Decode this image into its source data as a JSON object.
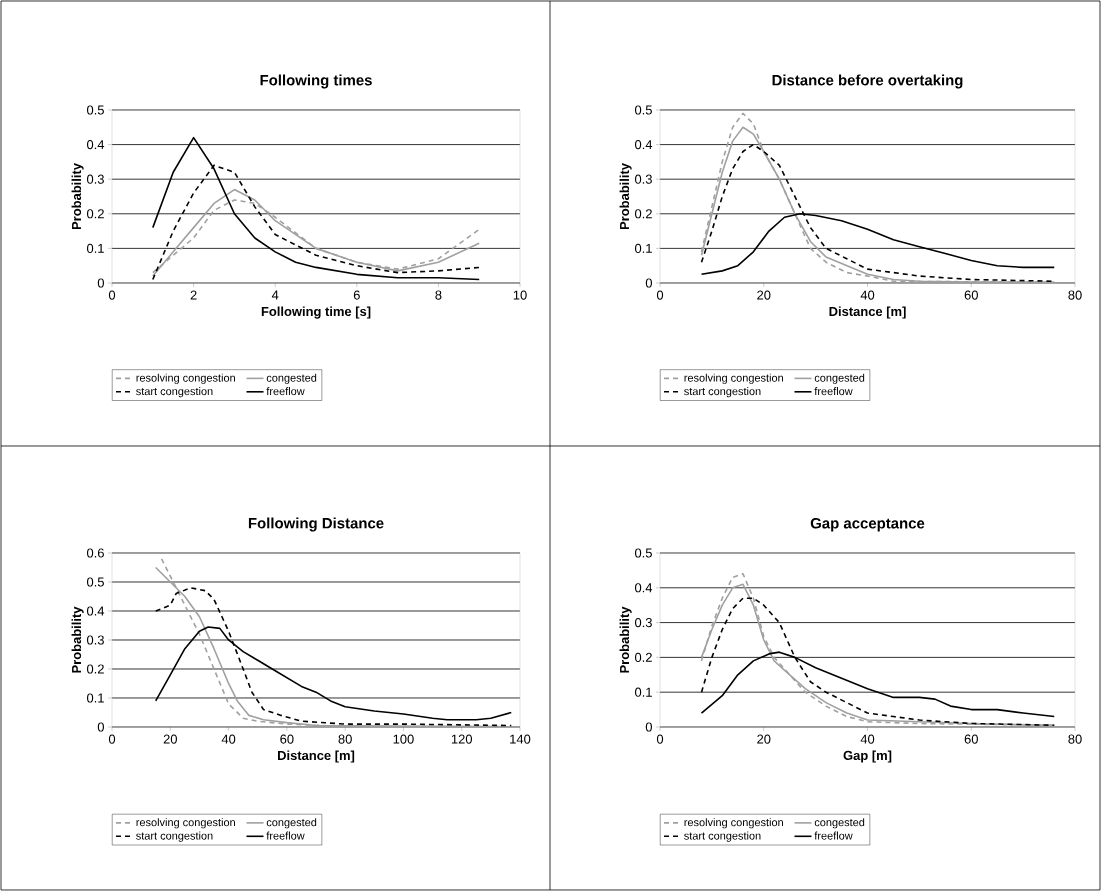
{
  "chart_data": [
    {
      "type": "line",
      "title": "Following times",
      "xlabel": "Following time [s]",
      "ylabel": "Probability",
      "xlim": [
        0,
        10
      ],
      "xticks": [
        0,
        2,
        4,
        6,
        8,
        10
      ],
      "ylim": [
        0,
        0.5
      ],
      "yticks": [
        0,
        0.1,
        0.2,
        0.3,
        0.4,
        0.5
      ],
      "grid": "y",
      "legend": "bottom",
      "marker": "none",
      "series": [
        {
          "name": "resolving congestion",
          "color": "#a0a0a0",
          "line_style": "dashed",
          "x": [
            1,
            1.5,
            2,
            2.5,
            3,
            3.5,
            4,
            5,
            6,
            7,
            8,
            9
          ],
          "values": [
            0.03,
            0.08,
            0.13,
            0.21,
            0.24,
            0.23,
            0.19,
            0.1,
            0.06,
            0.04,
            0.07,
            0.155
          ]
        },
        {
          "name": "congested",
          "color": "#a0a0a0",
          "line_style": "solid",
          "x": [
            1,
            1.5,
            2,
            2.5,
            3,
            3.5,
            4,
            5,
            6,
            7,
            8,
            9
          ],
          "values": [
            0.02,
            0.09,
            0.16,
            0.23,
            0.27,
            0.24,
            0.18,
            0.1,
            0.06,
            0.035,
            0.06,
            0.115
          ]
        },
        {
          "name": "start congestion",
          "color": "#000000",
          "line_style": "dashed",
          "x": [
            1,
            1.5,
            2,
            2.5,
            3,
            3.5,
            4,
            5,
            6,
            7,
            8,
            9
          ],
          "values": [
            0.01,
            0.15,
            0.26,
            0.34,
            0.32,
            0.22,
            0.14,
            0.08,
            0.05,
            0.03,
            0.035,
            0.045
          ]
        },
        {
          "name": "freeflow",
          "color": "#000000",
          "line_style": "solid",
          "x": [
            1,
            1.5,
            2,
            2.5,
            3,
            3.5,
            4,
            4.5,
            5,
            6,
            7,
            8,
            9
          ],
          "values": [
            0.16,
            0.32,
            0.42,
            0.33,
            0.2,
            0.13,
            0.09,
            0.06,
            0.045,
            0.025,
            0.015,
            0.015,
            0.01
          ]
        }
      ]
    },
    {
      "type": "line",
      "title": "Distance before overtaking",
      "xlabel": "Distance [m]",
      "ylabel": "Probability",
      "xlim": [
        0,
        80
      ],
      "xticks": [
        0,
        20,
        40,
        60,
        80
      ],
      "ylim": [
        0,
        0.5
      ],
      "yticks": [
        0,
        0.1,
        0.2,
        0.3,
        0.4,
        0.5
      ],
      "grid": "y",
      "legend": "bottom",
      "marker": "none",
      "series": [
        {
          "name": "resolving congestion",
          "color": "#a0a0a0",
          "line_style": "dashed",
          "x": [
            8,
            10,
            12,
            14,
            16,
            18,
            20,
            23,
            26,
            29,
            32,
            36,
            40,
            45,
            76
          ],
          "values": [
            0.09,
            0.22,
            0.35,
            0.45,
            0.49,
            0.46,
            0.38,
            0.3,
            0.2,
            0.1,
            0.06,
            0.03,
            0.02,
            0.005,
            0.002
          ]
        },
        {
          "name": "congested",
          "color": "#a0a0a0",
          "line_style": "solid",
          "x": [
            8,
            10,
            12,
            14,
            16,
            18,
            20,
            23,
            26,
            29,
            32,
            36,
            40,
            45,
            50,
            60,
            76
          ],
          "values": [
            0.08,
            0.2,
            0.32,
            0.41,
            0.45,
            0.43,
            0.38,
            0.3,
            0.2,
            0.12,
            0.075,
            0.05,
            0.025,
            0.01,
            0.005,
            0.003,
            0.002
          ]
        },
        {
          "name": "start congestion",
          "color": "#000000",
          "line_style": "dashed",
          "x": [
            8,
            10,
            12,
            14,
            16,
            18,
            20,
            23,
            26,
            29,
            32,
            36,
            40,
            45,
            50,
            60,
            76
          ],
          "values": [
            0.06,
            0.15,
            0.25,
            0.33,
            0.38,
            0.4,
            0.38,
            0.34,
            0.25,
            0.16,
            0.1,
            0.07,
            0.04,
            0.03,
            0.02,
            0.01,
            0.005
          ]
        },
        {
          "name": "freeflow",
          "color": "#000000",
          "line_style": "solid",
          "x": [
            8,
            12,
            15,
            18,
            21,
            24,
            27,
            30,
            35,
            40,
            45,
            50,
            55,
            60,
            65,
            70,
            76
          ],
          "values": [
            0.025,
            0.035,
            0.05,
            0.09,
            0.15,
            0.19,
            0.2,
            0.195,
            0.18,
            0.155,
            0.125,
            0.105,
            0.085,
            0.065,
            0.05,
            0.045,
            0.045
          ]
        }
      ]
    },
    {
      "type": "line",
      "title": "Following Distance",
      "xlabel": "Distance [m]",
      "ylabel": "Probability",
      "xlim": [
        0,
        140
      ],
      "xticks": [
        0,
        20,
        40,
        60,
        80,
        100,
        120,
        140
      ],
      "ylim": [
        0,
        0.6
      ],
      "yticks": [
        0,
        0.1,
        0.2,
        0.3,
        0.4,
        0.5,
        0.6
      ],
      "grid": "y",
      "legend": "bottom",
      "marker": "none",
      "series": [
        {
          "name": "resolving congestion",
          "color": "#a0a0a0",
          "line_style": "dashed",
          "x": [
            17,
            20,
            25,
            30,
            35,
            40,
            45,
            50,
            60,
            80,
            137
          ],
          "values": [
            0.58,
            0.52,
            0.42,
            0.32,
            0.2,
            0.08,
            0.03,
            0.02,
            0.01,
            0.002,
            0.001
          ]
        },
        {
          "name": "congested",
          "color": "#a0a0a0",
          "line_style": "solid",
          "x": [
            15,
            20,
            25,
            30,
            35,
            40,
            43,
            47,
            52,
            60,
            70,
            137
          ],
          "values": [
            0.55,
            0.5,
            0.45,
            0.38,
            0.27,
            0.15,
            0.09,
            0.04,
            0.025,
            0.015,
            0.005,
            0.001
          ]
        },
        {
          "name": "start congestion",
          "color": "#000000",
          "line_style": "dashed",
          "x": [
            15,
            20,
            22,
            27,
            32,
            35,
            40,
            45,
            48,
            52,
            58,
            65,
            80,
            100,
            137
          ],
          "values": [
            0.4,
            0.42,
            0.46,
            0.48,
            0.47,
            0.44,
            0.33,
            0.2,
            0.12,
            0.06,
            0.04,
            0.02,
            0.01,
            0.01,
            0.005
          ]
        },
        {
          "name": "freeflow",
          "color": "#000000",
          "line_style": "solid",
          "x": [
            15,
            20,
            25,
            30,
            33,
            37,
            40,
            45,
            50,
            55,
            60,
            65,
            70,
            75,
            80,
            90,
            100,
            110,
            115,
            125,
            130,
            137
          ],
          "values": [
            0.09,
            0.18,
            0.27,
            0.33,
            0.345,
            0.34,
            0.3,
            0.26,
            0.23,
            0.2,
            0.17,
            0.14,
            0.12,
            0.09,
            0.07,
            0.055,
            0.045,
            0.03,
            0.025,
            0.025,
            0.03,
            0.05
          ]
        }
      ]
    },
    {
      "type": "line",
      "title": "Gap acceptance",
      "xlabel": "Gap [m]",
      "ylabel": "Probability",
      "xlim": [
        0,
        80
      ],
      "xticks": [
        0,
        20,
        40,
        60,
        80
      ],
      "ylim": [
        0,
        0.5
      ],
      "yticks": [
        0,
        0.1,
        0.2,
        0.3,
        0.4,
        0.5
      ],
      "grid": "y",
      "legend": "bottom",
      "marker": "none",
      "series": [
        {
          "name": "resolving congestion",
          "color": "#a0a0a0",
          "line_style": "dashed",
          "x": [
            8,
            10,
            12,
            14,
            16,
            18,
            20,
            22,
            25,
            28,
            32,
            36,
            40,
            50,
            76
          ],
          "values": [
            0.19,
            0.29,
            0.37,
            0.43,
            0.44,
            0.37,
            0.26,
            0.2,
            0.15,
            0.1,
            0.06,
            0.03,
            0.015,
            0.01,
            0.005
          ]
        },
        {
          "name": "congested",
          "color": "#a0a0a0",
          "line_style": "solid",
          "x": [
            8,
            10,
            12,
            14,
            16,
            18,
            20,
            22,
            25,
            28,
            32,
            36,
            40,
            50,
            60,
            76
          ],
          "values": [
            0.2,
            0.28,
            0.35,
            0.4,
            0.41,
            0.35,
            0.25,
            0.19,
            0.15,
            0.11,
            0.07,
            0.04,
            0.02,
            0.015,
            0.01,
            0.005
          ]
        },
        {
          "name": "start congestion",
          "color": "#000000",
          "line_style": "dashed",
          "x": [
            8,
            10,
            12,
            14,
            16,
            18,
            20,
            23,
            26,
            29,
            32,
            36,
            40,
            45,
            50,
            60,
            76
          ],
          "values": [
            0.1,
            0.2,
            0.28,
            0.34,
            0.37,
            0.37,
            0.35,
            0.3,
            0.2,
            0.13,
            0.1,
            0.07,
            0.04,
            0.03,
            0.02,
            0.01,
            0.005
          ]
        },
        {
          "name": "freeflow",
          "color": "#000000",
          "line_style": "solid",
          "x": [
            8,
            12,
            15,
            18,
            21,
            23,
            26,
            30,
            35,
            40,
            45,
            50,
            53,
            56,
            60,
            65,
            70,
            76
          ],
          "values": [
            0.04,
            0.09,
            0.15,
            0.19,
            0.21,
            0.215,
            0.2,
            0.17,
            0.14,
            0.11,
            0.085,
            0.085,
            0.08,
            0.06,
            0.05,
            0.05,
            0.04,
            0.03
          ]
        }
      ]
    }
  ]
}
